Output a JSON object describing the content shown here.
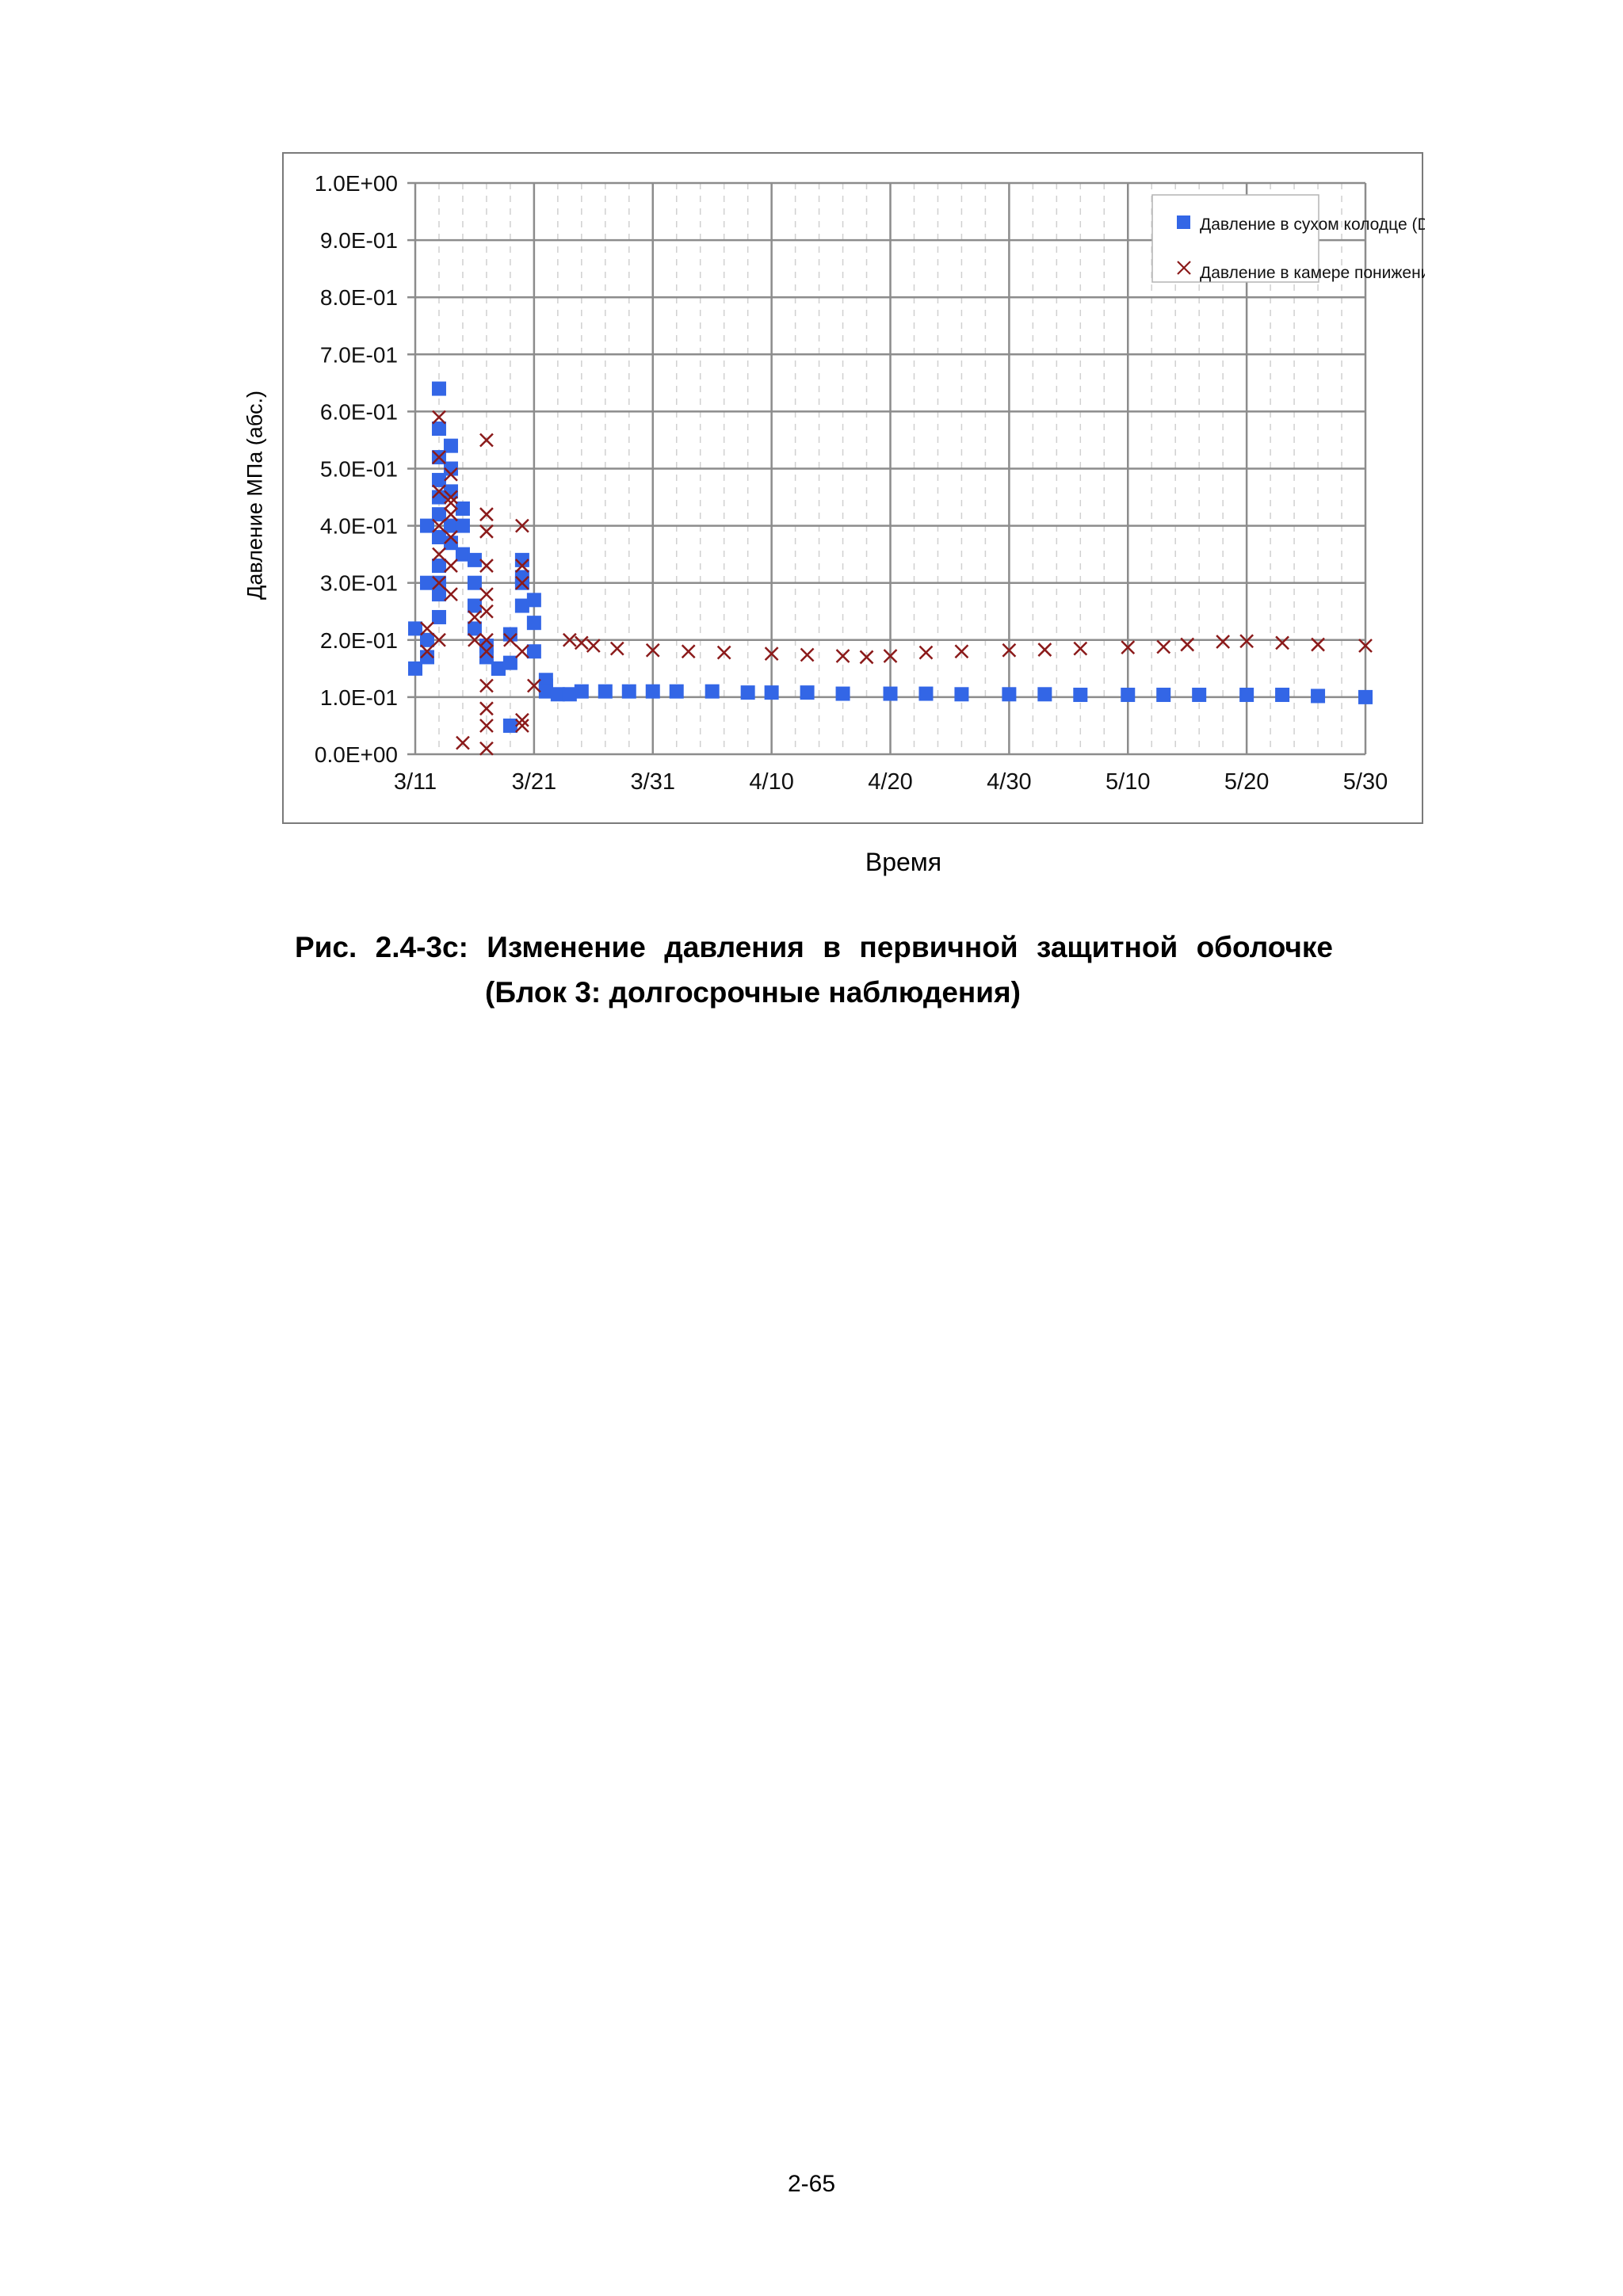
{
  "figure": {
    "caption_line1": "Рис. 2.4-3c: Изменение давления в первичной защитной оболочке",
    "caption_line2": "(Блок 3: долгосрочные наблюдения)",
    "page_number": "2-65"
  },
  "chart_data": {
    "type": "scatter",
    "title": "",
    "xlabel": "Время",
    "ylabel": "Давление МПа (абс.)",
    "x_tick_labels": [
      "3/11",
      "3/21",
      "3/31",
      "4/10",
      "4/20",
      "4/30",
      "5/10",
      "5/20",
      "5/30"
    ],
    "y_tick_labels": [
      "0.0E+00",
      "1.0E-01",
      "2.0E-01",
      "3.0E-01",
      "4.0E-01",
      "5.0E-01",
      "6.0E-01",
      "7.0E-01",
      "8.0E-01",
      "9.0E-01",
      "1.0E+00"
    ],
    "xlim": [
      "2011-03-11",
      "2011-05-30"
    ],
    "ylim": [
      0,
      1.0
    ],
    "grid": true,
    "legend_position": "top-right",
    "series": [
      {
        "name": "Давление в сухом колодце (D/W)",
        "marker": "square",
        "color": "#3366e6",
        "points": [
          [
            "2011-03-11",
            0.15
          ],
          [
            "2011-03-11",
            0.22
          ],
          [
            "2011-03-12",
            0.3
          ],
          [
            "2011-03-12",
            0.4
          ],
          [
            "2011-03-12",
            0.17
          ],
          [
            "2011-03-12",
            0.2
          ],
          [
            "2011-03-13",
            0.64
          ],
          [
            "2011-03-13",
            0.57
          ],
          [
            "2011-03-13",
            0.52
          ],
          [
            "2011-03-13",
            0.48
          ],
          [
            "2011-03-13",
            0.45
          ],
          [
            "2011-03-13",
            0.42
          ],
          [
            "2011-03-13",
            0.38
          ],
          [
            "2011-03-13",
            0.33
          ],
          [
            "2011-03-13",
            0.28
          ],
          [
            "2011-03-13",
            0.24
          ],
          [
            "2011-03-13",
            0.3
          ],
          [
            "2011-03-14",
            0.54
          ],
          [
            "2011-03-14",
            0.5
          ],
          [
            "2011-03-14",
            0.46
          ],
          [
            "2011-03-14",
            0.4
          ],
          [
            "2011-03-14",
            0.37
          ],
          [
            "2011-03-15",
            0.43
          ],
          [
            "2011-03-15",
            0.4
          ],
          [
            "2011-03-15",
            0.35
          ],
          [
            "2011-03-16",
            0.34
          ],
          [
            "2011-03-16",
            0.3
          ],
          [
            "2011-03-16",
            0.26
          ],
          [
            "2011-03-16",
            0.22
          ],
          [
            "2011-03-17",
            0.19
          ],
          [
            "2011-03-17",
            0.17
          ],
          [
            "2011-03-18",
            0.15
          ],
          [
            "2011-03-18",
            0.15
          ],
          [
            "2011-03-19",
            0.05
          ],
          [
            "2011-03-19",
            0.16
          ],
          [
            "2011-03-19",
            0.21
          ],
          [
            "2011-03-20",
            0.26
          ],
          [
            "2011-03-20",
            0.3
          ],
          [
            "2011-03-20",
            0.34
          ],
          [
            "2011-03-20",
            0.31
          ],
          [
            "2011-03-21",
            0.27
          ],
          [
            "2011-03-21",
            0.23
          ],
          [
            "2011-03-21",
            0.18
          ],
          [
            "2011-03-22",
            0.13
          ],
          [
            "2011-03-22",
            0.12
          ],
          [
            "2011-03-22",
            0.11
          ],
          [
            "2011-03-23",
            0.105
          ],
          [
            "2011-03-24",
            0.105
          ],
          [
            "2011-03-25",
            0.11
          ],
          [
            "2011-03-27",
            0.11
          ],
          [
            "2011-03-29",
            0.11
          ],
          [
            "2011-03-31",
            0.11
          ],
          [
            "2011-04-02",
            0.11
          ],
          [
            "2011-04-05",
            0.11
          ],
          [
            "2011-04-08",
            0.108
          ],
          [
            "2011-04-10",
            0.108
          ],
          [
            "2011-04-13",
            0.108
          ],
          [
            "2011-04-16",
            0.106
          ],
          [
            "2011-04-20",
            0.106
          ],
          [
            "2011-04-23",
            0.106
          ],
          [
            "2011-04-26",
            0.105
          ],
          [
            "2011-04-30",
            0.105
          ],
          [
            "2011-05-03",
            0.105
          ],
          [
            "2011-05-06",
            0.104
          ],
          [
            "2011-05-10",
            0.104
          ],
          [
            "2011-05-13",
            0.104
          ],
          [
            "2011-05-16",
            0.104
          ],
          [
            "2011-05-20",
            0.104
          ],
          [
            "2011-05-23",
            0.104
          ],
          [
            "2011-05-26",
            0.102
          ],
          [
            "2011-05-30",
            0.1
          ]
        ]
      },
      {
        "name": "Давление в камере понижения давления (S/C)",
        "marker": "x",
        "color": "#8b1a1a",
        "points": [
          [
            "2011-03-12",
            0.18
          ],
          [
            "2011-03-12",
            0.22
          ],
          [
            "2011-03-13",
            0.59
          ],
          [
            "2011-03-13",
            0.52
          ],
          [
            "2011-03-13",
            0.46
          ],
          [
            "2011-03-13",
            0.4
          ],
          [
            "2011-03-13",
            0.35
          ],
          [
            "2011-03-13",
            0.3
          ],
          [
            "2011-03-13",
            0.2
          ],
          [
            "2011-03-14",
            0.49
          ],
          [
            "2011-03-14",
            0.44
          ],
          [
            "2011-03-14",
            0.38
          ],
          [
            "2011-03-14",
            0.33
          ],
          [
            "2011-03-14",
            0.28
          ],
          [
            "2011-03-14",
            0.45
          ],
          [
            "2011-03-14",
            0.42
          ],
          [
            "2011-03-15",
            0.02
          ],
          [
            "2011-03-16",
            0.24
          ],
          [
            "2011-03-16",
            0.2
          ],
          [
            "2011-03-17",
            0.55
          ],
          [
            "2011-03-17",
            0.42
          ],
          [
            "2011-03-17",
            0.39
          ],
          [
            "2011-03-17",
            0.33
          ],
          [
            "2011-03-17",
            0.28
          ],
          [
            "2011-03-17",
            0.25
          ],
          [
            "2011-03-17",
            0.2
          ],
          [
            "2011-03-17",
            0.18
          ],
          [
            "2011-03-17",
            0.12
          ],
          [
            "2011-03-17",
            0.08
          ],
          [
            "2011-03-17",
            0.05
          ],
          [
            "2011-03-17",
            0.01
          ],
          [
            "2011-03-19",
            0.2
          ],
          [
            "2011-03-20",
            0.05
          ],
          [
            "2011-03-20",
            0.06
          ],
          [
            "2011-03-20",
            0.18
          ],
          [
            "2011-03-20",
            0.4
          ],
          [
            "2011-03-20",
            0.33
          ],
          [
            "2011-03-20",
            0.3
          ],
          [
            "2011-03-21",
            0.12
          ],
          [
            "2011-03-24",
            0.2
          ],
          [
            "2011-03-25",
            0.195
          ],
          [
            "2011-03-26",
            0.19
          ],
          [
            "2011-03-28",
            0.185
          ],
          [
            "2011-03-31",
            0.182
          ],
          [
            "2011-04-03",
            0.18
          ],
          [
            "2011-04-06",
            0.178
          ],
          [
            "2011-04-10",
            0.176
          ],
          [
            "2011-04-13",
            0.174
          ],
          [
            "2011-04-16",
            0.172
          ],
          [
            "2011-04-18",
            0.17
          ],
          [
            "2011-04-20",
            0.172
          ],
          [
            "2011-04-23",
            0.178
          ],
          [
            "2011-04-26",
            0.18
          ],
          [
            "2011-04-30",
            0.182
          ],
          [
            "2011-05-03",
            0.183
          ],
          [
            "2011-05-06",
            0.185
          ],
          [
            "2011-05-10",
            0.187
          ],
          [
            "2011-05-13",
            0.188
          ],
          [
            "2011-05-15",
            0.192
          ],
          [
            "2011-05-18",
            0.197
          ],
          [
            "2011-05-20",
            0.198
          ],
          [
            "2011-05-23",
            0.195
          ],
          [
            "2011-05-26",
            0.192
          ],
          [
            "2011-05-30",
            0.19
          ]
        ]
      }
    ]
  }
}
